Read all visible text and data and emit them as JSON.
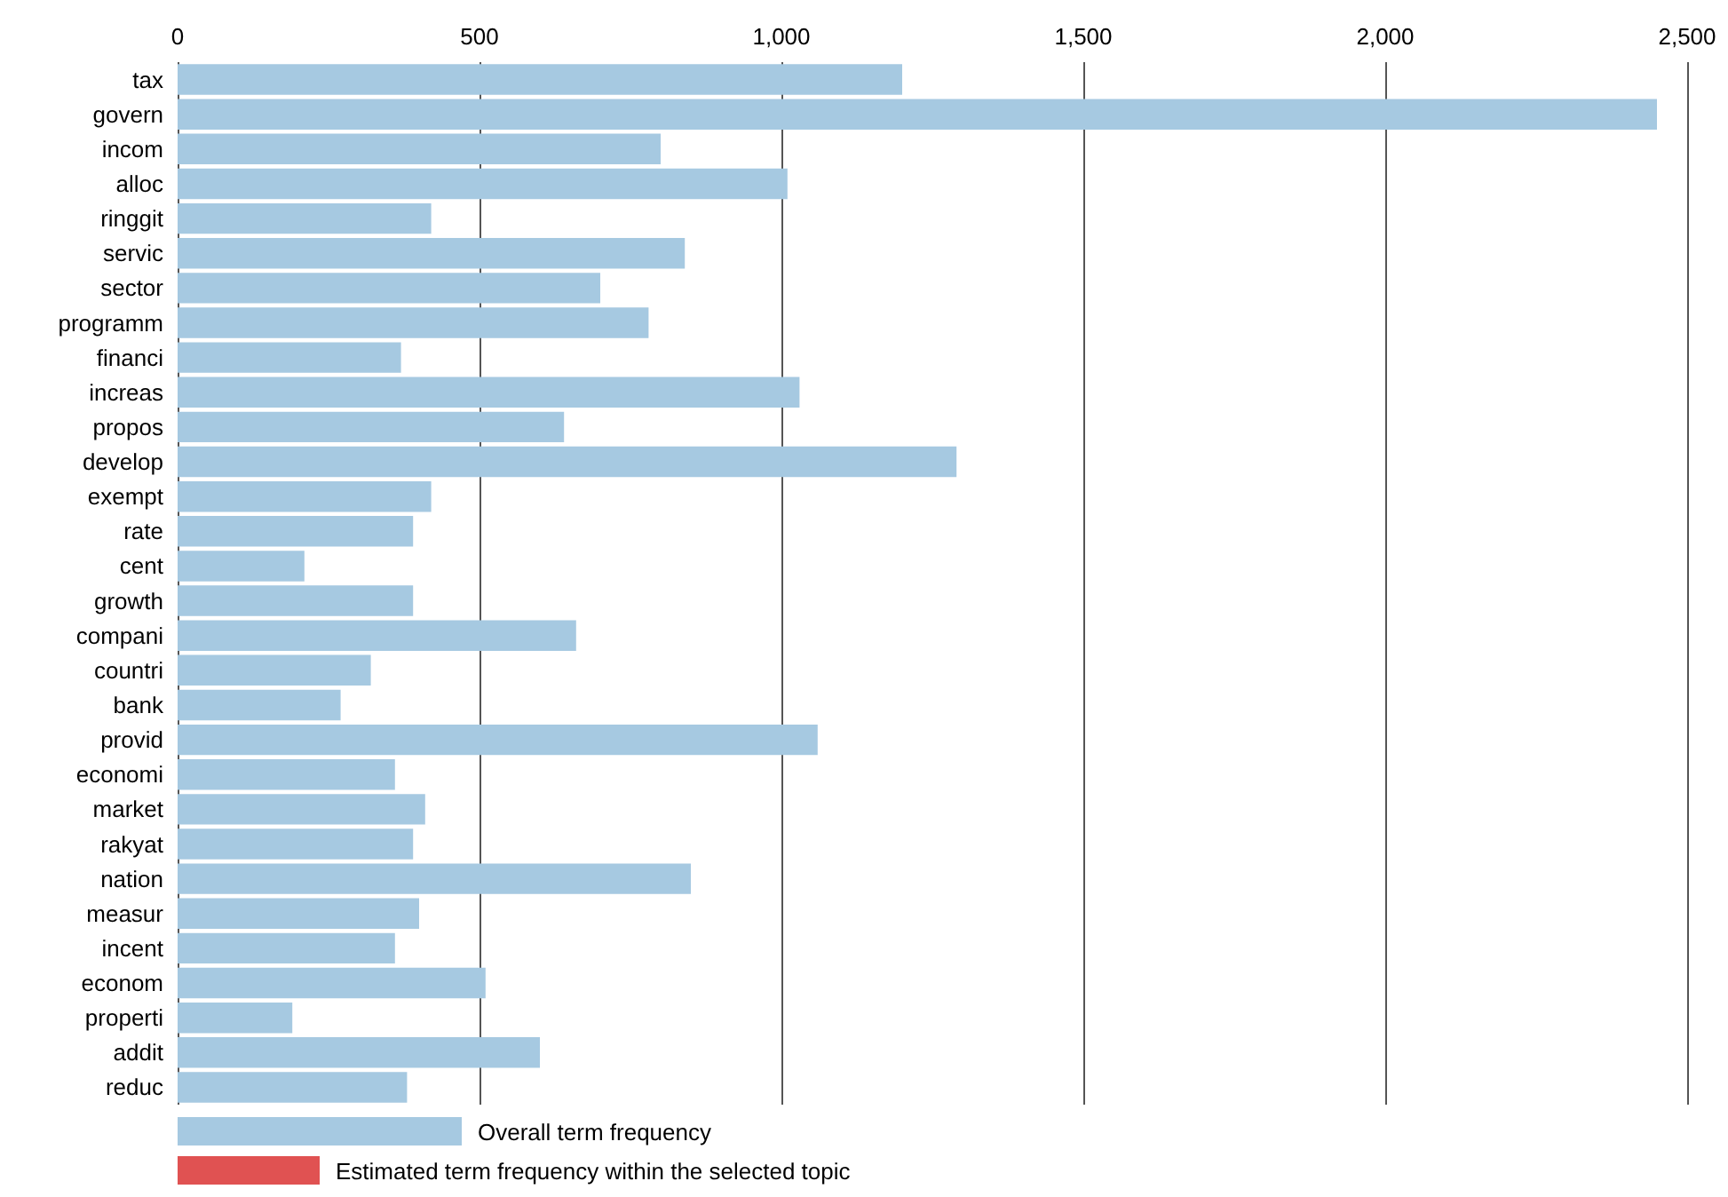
{
  "chart_data": {
    "type": "bar",
    "orientation": "horizontal",
    "categories": [
      "tax",
      "govern",
      "incom",
      "alloc",
      "ringgit",
      "servic",
      "sector",
      "programm",
      "financi",
      "increas",
      "propos",
      "develop",
      "exempt",
      "rate",
      "cent",
      "growth",
      "compani",
      "countri",
      "bank",
      "provid",
      "economi",
      "market",
      "rakyat",
      "nation",
      "measur",
      "incent",
      "econom",
      "properti",
      "addit",
      "reduc"
    ],
    "series": [
      {
        "name": "Overall term frequency",
        "color": "#a6c9e1",
        "values": [
          1200,
          2450,
          800,
          1010,
          420,
          840,
          700,
          780,
          370,
          1030,
          640,
          1290,
          420,
          390,
          210,
          390,
          660,
          320,
          270,
          1060,
          360,
          410,
          390,
          850,
          400,
          360,
          510,
          190,
          600,
          380
        ]
      }
    ],
    "annotations": [
      "Estimated term frequency within the selected topic"
    ],
    "xlim": [
      0,
      2500
    ],
    "xticks": [
      0,
      {
        "value": 500,
        "label": "500"
      },
      {
        "value": 1000,
        "label": "1,000"
      },
      {
        "value": 1500,
        "label": "1,500"
      },
      {
        "value": 2000,
        "label": "2,000"
      },
      {
        "value": 2500,
        "label": "2,500"
      }
    ],
    "grid": "x",
    "legend": "bottom left"
  }
}
